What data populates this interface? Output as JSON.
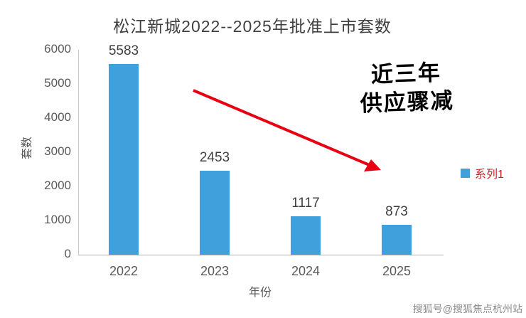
{
  "chart_data": {
    "type": "bar",
    "categories": [
      "2022",
      "2023",
      "2024",
      "2025"
    ],
    "values": [
      5583,
      2453,
      1117,
      873
    ],
    "title": "松江新城2022--2025年批准上市套数",
    "xlabel": "年份",
    "ylabel": "套数",
    "ylim": [
      0,
      6000
    ],
    "ytick_step": 1000,
    "grid": false,
    "legend_position": "right"
  },
  "legend": {
    "label": "系列1"
  },
  "annotation": {
    "line1": "近三年",
    "line2": "供应骤减"
  },
  "watermark": "搜狐号@搜狐焦点杭州站",
  "colors": {
    "bar": "#3FA0DB",
    "arrow": "#E60012",
    "legend_text": "#C9252D",
    "annotation_text": "#000000",
    "annotation_outline": "#FFFFFF"
  }
}
